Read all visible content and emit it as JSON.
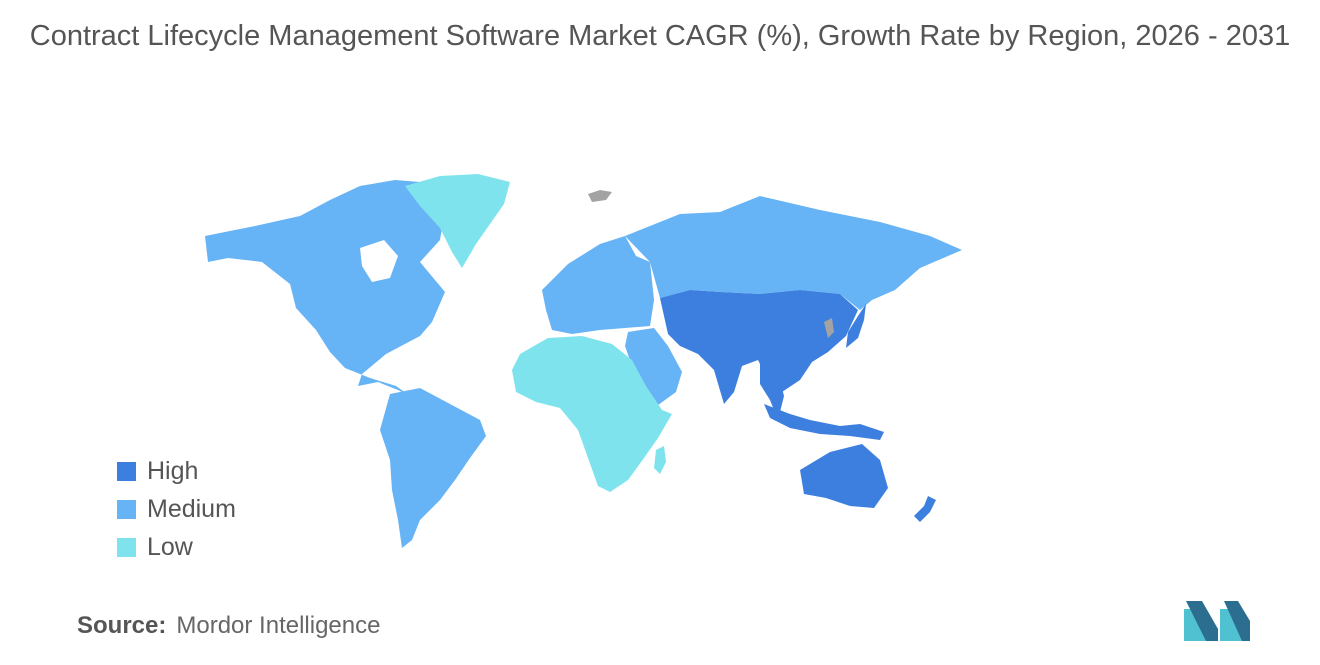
{
  "title": "Contract Lifecycle Management Software Market CAGR (%), Growth Rate by Region, 2026 - 2031",
  "legend": [
    {
      "label": "High",
      "color": "#3d7fde"
    },
    {
      "label": "Medium",
      "color": "#66b3f5"
    },
    {
      "label": "Low",
      "color": "#7fe3ee"
    }
  ],
  "regions": {
    "north_america": "Medium",
    "south_america": "Medium",
    "europe": "Medium",
    "russia": "Medium",
    "middle_east": "Medium",
    "greenland": "Low",
    "africa": "Low",
    "asia_pacific": "High"
  },
  "colors": {
    "no_data": "#a3a3a3"
  },
  "source": {
    "label": "Source:",
    "value": "Mordor Intelligence"
  },
  "logo": {
    "name": "mordor-intelligence-logo"
  }
}
